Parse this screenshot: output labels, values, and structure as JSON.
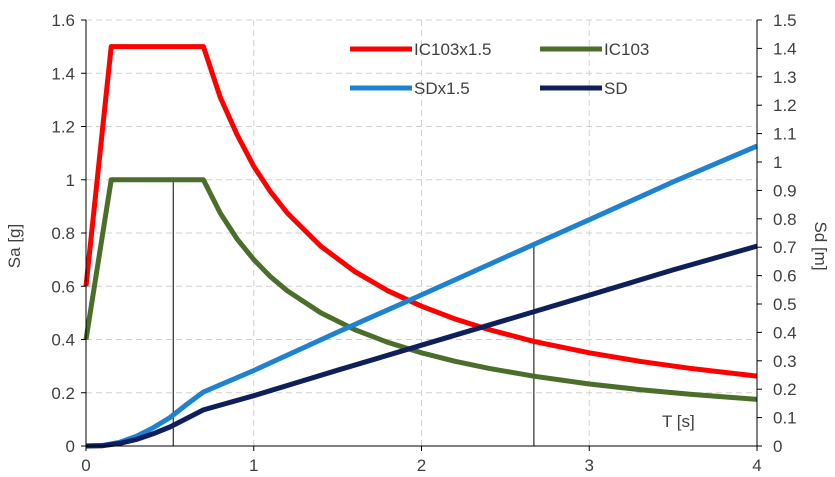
{
  "chart_data": {
    "type": "line",
    "xlabel": "T [s]",
    "ylabel": "Sa [g]",
    "y2label": "Sd [m]",
    "xlim": [
      0,
      4
    ],
    "ylim": [
      0,
      1.6
    ],
    "y2lim": [
      0,
      1.5
    ],
    "x_ticks": [
      "0",
      "1",
      "2",
      "3",
      "4"
    ],
    "y_ticks": [
      "0",
      "0.2",
      "0.4",
      "0.6",
      "0.8",
      "1",
      "1.2",
      "1.4",
      "1.6"
    ],
    "y2_ticks": [
      "0",
      "0.1",
      "0.2",
      "0.3",
      "0.4",
      "0.5",
      "0.6",
      "0.7",
      "0.8",
      "0.9",
      "1",
      "1.1",
      "1.2",
      "1.3",
      "1.4",
      "1.5"
    ],
    "grid": true,
    "legend_position": "top-right",
    "series": [
      {
        "name": "IC103x1.5",
        "axis": "left",
        "color": "#ff0000",
        "x": [
          0,
          0.15,
          0.7,
          0.8,
          0.9,
          1.0,
          1.1,
          1.2,
          1.4,
          1.6,
          1.8,
          2.0,
          2.2,
          2.4,
          2.67,
          3.0,
          3.3,
          3.6,
          4.0
        ],
        "y": [
          0.6,
          1.5,
          1.5,
          1.31,
          1.17,
          1.05,
          0.955,
          0.875,
          0.75,
          0.656,
          0.583,
          0.525,
          0.477,
          0.4375,
          0.393,
          0.35,
          0.318,
          0.292,
          0.2625
        ]
      },
      {
        "name": "IC103",
        "axis": "left",
        "color": "#4b6e2a",
        "x": [
          0,
          0.15,
          0.7,
          0.8,
          0.9,
          1.0,
          1.1,
          1.2,
          1.4,
          1.6,
          1.8,
          2.0,
          2.2,
          2.4,
          2.67,
          3.0,
          3.3,
          3.6,
          4.0
        ],
        "y": [
          0.4,
          1.0,
          1.0,
          0.875,
          0.778,
          0.7,
          0.636,
          0.583,
          0.5,
          0.4375,
          0.389,
          0.35,
          0.318,
          0.292,
          0.262,
          0.233,
          0.212,
          0.194,
          0.175
        ]
      },
      {
        "name": "SDx1.5",
        "axis": "right",
        "color": "#1f82d0",
        "x": [
          0,
          0.1,
          0.2,
          0.3,
          0.4,
          0.5,
          0.6,
          0.7,
          1.0,
          1.5,
          2.0,
          2.5,
          3.0,
          3.5,
          4.0
        ],
        "y": [
          0,
          0.002,
          0.013,
          0.034,
          0.064,
          0.1,
          0.146,
          0.19,
          0.266,
          0.401,
          0.532,
          0.665,
          0.797,
          0.93,
          1.056
        ]
      },
      {
        "name": "SD",
        "axis": "right",
        "color": "#0e1f5b",
        "x": [
          0,
          0.1,
          0.2,
          0.3,
          0.4,
          0.5,
          0.6,
          0.7,
          1.0,
          1.5,
          2.0,
          2.5,
          3.0,
          3.5,
          4.0
        ],
        "y": [
          0,
          0.001,
          0.009,
          0.023,
          0.043,
          0.067,
          0.097,
          0.127,
          0.177,
          0.267,
          0.355,
          0.443,
          0.531,
          0.62,
          0.704
        ]
      }
    ],
    "reference_lines": [
      {
        "x": 0.52,
        "axis": "left",
        "y_top": 1.0
      },
      {
        "x": 2.67,
        "axis": "right",
        "y_top": 0.714
      }
    ]
  }
}
